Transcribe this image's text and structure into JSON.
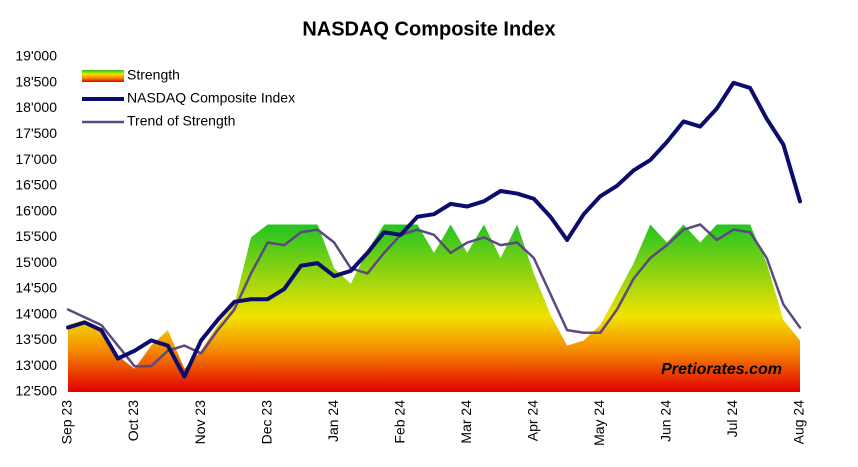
{
  "chart_data": {
    "type": "area_line",
    "title": "NASDAQ Composite Index",
    "annotation": "Pretiorates.com",
    "x": [
      0,
      0.25,
      0.5,
      0.75,
      1,
      1.25,
      1.5,
      1.75,
      2,
      2.25,
      2.5,
      2.75,
      3,
      3.25,
      3.5,
      3.75,
      4,
      4.25,
      4.5,
      4.75,
      5,
      5.25,
      5.5,
      5.75,
      6,
      6.25,
      6.5,
      6.75,
      7,
      7.25,
      7.5,
      7.75,
      8,
      8.25,
      8.5,
      8.75,
      9,
      9.25,
      9.5,
      9.75,
      10,
      10.25,
      10.5,
      10.75,
      11
    ],
    "xlim": [
      0,
      11
    ],
    "xticks": [
      {
        "value": 0,
        "label": "Sep 23"
      },
      {
        "value": 1,
        "label": "Oct 23"
      },
      {
        "value": 2,
        "label": "Nov 23"
      },
      {
        "value": 3,
        "label": "Dec 23"
      },
      {
        "value": 4,
        "label": "Jan 24"
      },
      {
        "value": 5,
        "label": "Feb 24"
      },
      {
        "value": 6,
        "label": "Mar 24"
      },
      {
        "value": 7,
        "label": "Apr 24"
      },
      {
        "value": 8,
        "label": "May 24"
      },
      {
        "value": 9,
        "label": "Jun 24"
      },
      {
        "value": 10,
        "label": "Jul 24"
      },
      {
        "value": 11,
        "label": "Aug 24"
      }
    ],
    "ylim": [
      12500,
      19000
    ],
    "yticks": [
      {
        "value": 12500,
        "label": "12'500"
      },
      {
        "value": 13000,
        "label": "13'000"
      },
      {
        "value": 13500,
        "label": "13'500"
      },
      {
        "value": 14000,
        "label": "14'000"
      },
      {
        "value": 14500,
        "label": "14'500"
      },
      {
        "value": 15000,
        "label": "15'000"
      },
      {
        "value": 15500,
        "label": "15'500"
      },
      {
        "value": 16000,
        "label": "16'000"
      },
      {
        "value": 16500,
        "label": "16'500"
      },
      {
        "value": 17000,
        "label": "17'000"
      },
      {
        "value": 17500,
        "label": "17'500"
      },
      {
        "value": 18000,
        "label": "18'000"
      },
      {
        "value": 18500,
        "label": "18'500"
      },
      {
        "value": 19000,
        "label": "19'000"
      }
    ],
    "legend": "upper left",
    "series": [
      {
        "name": "Strength",
        "kind": "area",
        "colors": [
          "#22c422",
          "#f2e200",
          "#f58a00",
          "#e00000"
        ],
        "values": [
          13800,
          13900,
          13700,
          13200,
          12950,
          13400,
          13700,
          12950,
          13300,
          13800,
          14200,
          15500,
          15750,
          15750,
          15750,
          15750,
          14900,
          14600,
          15250,
          15750,
          15750,
          15750,
          15200,
          15750,
          15200,
          15750,
          15100,
          15750,
          14800,
          14000,
          13400,
          13500,
          13800,
          14400,
          15000,
          15750,
          15400,
          15750,
          15400,
          15750,
          15750,
          15750,
          15000,
          13900,
          13500
        ]
      },
      {
        "name": "NASDAQ Composite Index",
        "kind": "line",
        "color": "#0b0c6e",
        "width": 4,
        "values": [
          13750,
          13850,
          13700,
          13150,
          13300,
          13500,
          13400,
          12800,
          13500,
          13900,
          14250,
          14300,
          14300,
          14500,
          14950,
          15000,
          14750,
          14850,
          15200,
          15600,
          15550,
          15900,
          15950,
          16150,
          16100,
          16200,
          16400,
          16350,
          16250,
          15900,
          15450,
          15950,
          16300,
          16500,
          16800,
          17000,
          17350,
          17750,
          17650,
          18000,
          18500,
          18400,
          17800,
          17300,
          16200
        ]
      },
      {
        "name": "Trend of Strength",
        "kind": "line",
        "color": "#5b4a7e",
        "width": 2.5,
        "values": [
          14100,
          13950,
          13800,
          13400,
          13000,
          13000,
          13300,
          13400,
          13250,
          13700,
          14100,
          14800,
          15400,
          15350,
          15600,
          15650,
          15400,
          14900,
          14800,
          15200,
          15550,
          15650,
          15550,
          15200,
          15400,
          15500,
          15350,
          15400,
          15100,
          14400,
          13700,
          13650,
          13650,
          14100,
          14700,
          15100,
          15350,
          15650,
          15750,
          15450,
          15650,
          15600,
          15100,
          14200,
          13750
        ]
      }
    ]
  }
}
